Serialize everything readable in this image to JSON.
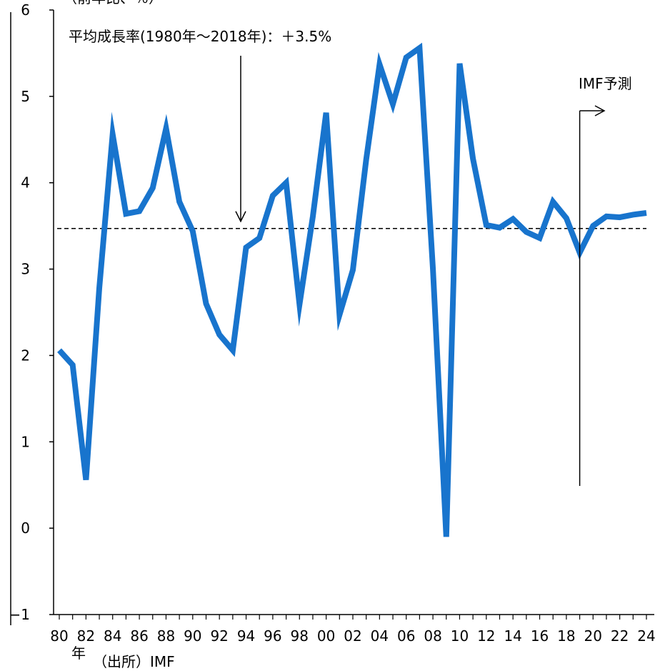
{
  "chart_data": {
    "type": "line",
    "ylabel": "（前年比、％）",
    "xlabel": "年",
    "source": "（出所）IMF",
    "ylim": [
      -1,
      6
    ],
    "y_ticks": [
      "−1",
      "0",
      "1",
      "2",
      "3",
      "4",
      "5",
      "6"
    ],
    "x_tick_labels": [
      "80",
      "82",
      "84",
      "86",
      "88",
      "90",
      "92",
      "94",
      "96",
      "98",
      "00",
      "02",
      "04",
      "06",
      "08",
      "10",
      "12",
      "14",
      "16",
      "18",
      "20",
      "22",
      "24"
    ],
    "x": [
      1980,
      1981,
      1982,
      1983,
      1984,
      1985,
      1986,
      1987,
      1988,
      1989,
      1990,
      1991,
      1992,
      1993,
      1994,
      1995,
      1996,
      1997,
      1998,
      1999,
      2000,
      2001,
      2002,
      2003,
      2004,
      2005,
      2006,
      2007,
      2008,
      2009,
      2010,
      2011,
      2012,
      2013,
      2014,
      2015,
      2016,
      2017,
      2018,
      2019,
      2020,
      2021,
      2022,
      2023,
      2024
    ],
    "values": [
      2.06,
      1.89,
      0.56,
      2.78,
      4.56,
      3.64,
      3.67,
      3.94,
      4.63,
      3.78,
      3.44,
      2.6,
      2.24,
      2.06,
      3.25,
      3.36,
      3.85,
      4.0,
      2.59,
      3.61,
      4.81,
      2.47,
      2.99,
      4.27,
      5.37,
      4.91,
      5.45,
      5.56,
      3.0,
      -0.1,
      5.38,
      4.28,
      3.51,
      3.48,
      3.58,
      3.43,
      3.36,
      3.78,
      3.59,
      3.19,
      3.5,
      3.61,
      3.6,
      3.63,
      3.65
    ],
    "color": "#1874cd",
    "average_line": {
      "value": 3.47,
      "label": "平均成長率(1980年〜2018年)：＋3.5%"
    },
    "forecast": {
      "start_year": 2019,
      "label": "IMF予測"
    },
    "grid": false
  }
}
